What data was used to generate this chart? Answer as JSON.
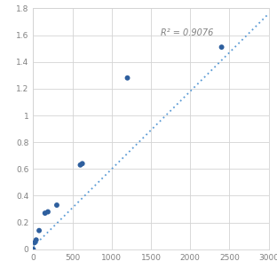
{
  "x_data": [
    0,
    18,
    37,
    75,
    150,
    187,
    300,
    600,
    625,
    1200,
    2400
  ],
  "y_data": [
    0.0,
    0.05,
    0.07,
    0.14,
    0.27,
    0.28,
    0.33,
    0.63,
    0.64,
    1.28,
    1.51
  ],
  "trendline_x": [
    0,
    3000
  ],
  "trendline_y": [
    0.02,
    1.76
  ],
  "r_squared": "R² = 0.9076",
  "r_squared_x": 1620,
  "r_squared_y": 1.62,
  "xlim": [
    0,
    3000
  ],
  "ylim": [
    0,
    1.8
  ],
  "xticks": [
    0,
    500,
    1000,
    1500,
    2000,
    2500,
    3000
  ],
  "yticks": [
    0,
    0.2,
    0.4,
    0.6,
    0.8,
    1.0,
    1.2,
    1.4,
    1.6,
    1.8
  ],
  "dot_color": "#2e5f9e",
  "line_color": "#5b9bd5",
  "grid_color": "#d3d3d3",
  "bg_color": "#ffffff",
  "text_color": "#808080",
  "annotation_color": "#808080",
  "tick_fontsize": 6.5,
  "annotation_fontsize": 7.0
}
